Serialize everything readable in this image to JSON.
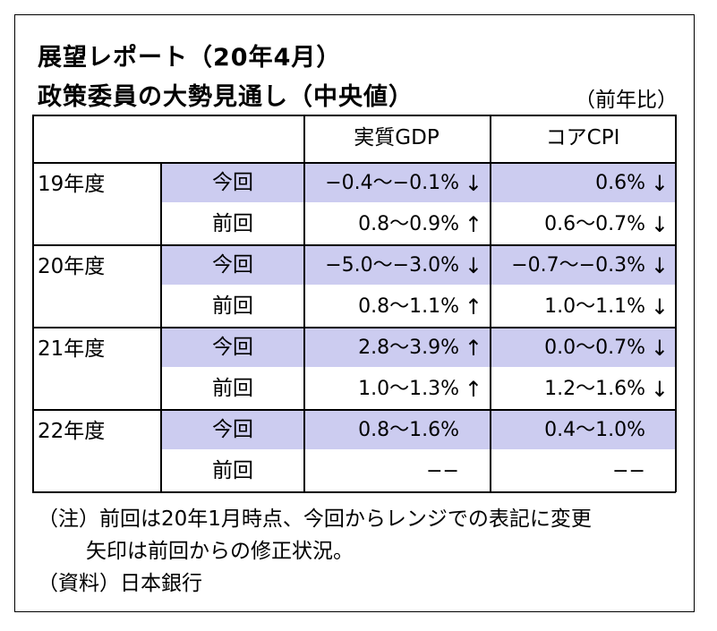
{
  "title": "展望レポート（20年4月）",
  "subtitle": "政策委員の大勢見通し（中央値）",
  "unit": "（前年比）",
  "headers": [
    "実質GDP",
    "コアCPI"
  ],
  "rows": [
    {
      "year": "19年度",
      "current_label": "今回",
      "previous_label": "前回",
      "current": {
        "gdp": "−0.4〜−0.1%",
        "gdp_arrow": "↓",
        "cpi": "0.6%",
        "cpi_arrow": "↓"
      },
      "previous": {
        "gdp": "0.8〜0.9%",
        "gdp_arrow": "↑",
        "cpi": "0.6〜0.7%",
        "cpi_arrow": "↓"
      }
    },
    {
      "year": "20年度",
      "current_label": "今回",
      "previous_label": "前回",
      "current": {
        "gdp": "−5.0〜−3.0%",
        "gdp_arrow": "↓",
        "cpi": "−0.7〜−0.3%",
        "cpi_arrow": "↓"
      },
      "previous": {
        "gdp": "0.8〜1.1%",
        "gdp_arrow": "↑",
        "cpi": "1.0〜1.1%",
        "cpi_arrow": "↓"
      }
    },
    {
      "year": "21年度",
      "current_label": "今回",
      "previous_label": "前回",
      "current": {
        "gdp": "2.8〜3.9%",
        "gdp_arrow": "↑",
        "cpi": "0.0〜0.7%",
        "cpi_arrow": "↓"
      },
      "previous": {
        "gdp": "1.0〜1.3%",
        "gdp_arrow": "↑",
        "cpi": "1.2〜1.6%",
        "cpi_arrow": "↓"
      }
    },
    {
      "year": "22年度",
      "current_label": "今回",
      "previous_label": "前回",
      "current": {
        "gdp": "0.8〜1.6%",
        "gdp_arrow": "",
        "cpi": "0.4〜1.0%",
        "cpi_arrow": ""
      },
      "previous": {
        "gdp": "−−",
        "gdp_arrow": "",
        "cpi": "−−",
        "cpi_arrow": ""
      }
    }
  ],
  "notes": [
    "（注）前回は20年1月時点、今回からレンジでの表記に変更",
    "矢印は前回からの修正状況。",
    "（資料）日本銀行"
  ],
  "colors": {
    "highlight": "#ccccf0"
  }
}
